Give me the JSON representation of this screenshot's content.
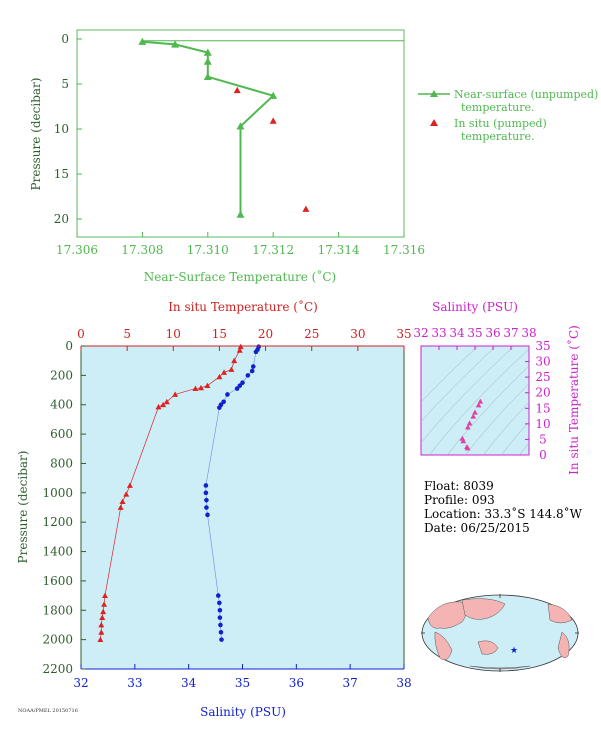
{
  "chart_data": [
    {
      "type": "line",
      "xlabel": "Near-Surface Temperature (˚C)",
      "ylabel": "Pressure (decibar)",
      "xlim": [
        17.306,
        17.316
      ],
      "ylim": [
        22,
        -1
      ],
      "x_ticks": [
        "17.306",
        "17.308",
        "17.310",
        "17.312",
        "17.314",
        "17.316"
      ],
      "y_ticks": [
        "0",
        "5",
        "10",
        "15",
        "20"
      ],
      "series": [
        {
          "name": "Near-surface (unpumped) temperature.",
          "color": "#4fb84f",
          "points": [
            [
              17.308,
              0.3
            ],
            [
              17.309,
              0.6
            ],
            [
              17.31,
              1.5
            ],
            [
              17.31,
              2.5
            ],
            [
              17.31,
              4.2
            ],
            [
              17.312,
              6.3
            ],
            [
              17.311,
              9.7
            ],
            [
              17.311,
              19.5
            ]
          ],
          "extra_line": [
            [
              17.308,
              0.2
            ],
            [
              17.316,
              0.2
            ]
          ]
        },
        {
          "name": "In situ (pumped) temperature.",
          "color": "#dd2222",
          "points": [
            [
              17.3109,
              5.7
            ],
            [
              17.312,
              9.1
            ],
            [
              17.313,
              18.9
            ]
          ]
        }
      ],
      "legend_position": "right"
    },
    {
      "type": "line",
      "title": "In situ Temperature (˚C)",
      "xlabel": "Salinity (PSU)",
      "ylabel": "Pressure (decibar)",
      "temp_lim": [
        0,
        35
      ],
      "sal_lim": [
        32,
        38
      ],
      "ylim": [
        2200,
        0
      ],
      "temp_ticks": [
        "0",
        "5",
        "10",
        "15",
        "20",
        "25",
        "30",
        "35"
      ],
      "sal_ticks": [
        "32",
        "33",
        "34",
        "35",
        "36",
        "37",
        "38"
      ],
      "y_ticks": [
        "0",
        "200",
        "400",
        "600",
        "800",
        "1000",
        "1200",
        "1400",
        "1600",
        "1800",
        "2000",
        "2200"
      ],
      "series": [
        {
          "name": "In situ temperature",
          "color": "#dd2222",
          "points": [
            [
              17.3,
              5
            ],
            [
              17.2,
              30
            ],
            [
              16.6,
              100
            ],
            [
              16.3,
              160
            ],
            [
              15.5,
              180
            ],
            [
              15.0,
              210
            ],
            [
              13.7,
              270
            ],
            [
              13.0,
              285
            ],
            [
              12.4,
              290
            ],
            [
              10.2,
              330
            ],
            [
              9.3,
              380
            ],
            [
              8.9,
              400
            ],
            [
              8.4,
              415
            ],
            [
              5.3,
              950
            ],
            [
              4.9,
              1010
            ],
            [
              4.5,
              1060
            ],
            [
              4.3,
              1100
            ],
            [
              2.6,
              1700
            ],
            [
              2.5,
              1760
            ],
            [
              2.4,
              1810
            ],
            [
              2.3,
              1850
            ],
            [
              2.2,
              1900
            ],
            [
              2.2,
              1950
            ],
            [
              2.1,
              2000
            ]
          ]
        },
        {
          "name": "Salinity",
          "color": "#1122cc",
          "axis": "salinity",
          "points": [
            [
              35.3,
              5
            ],
            [
              35.28,
              25
            ],
            [
              35.25,
              40
            ],
            [
              35.2,
              140
            ],
            [
              35.18,
              170
            ],
            [
              35.1,
              200
            ],
            [
              35.0,
              250
            ],
            [
              34.95,
              270
            ],
            [
              34.9,
              290
            ],
            [
              34.72,
              330
            ],
            [
              34.65,
              380
            ],
            [
              34.6,
              400
            ],
            [
              34.57,
              420
            ],
            [
              34.32,
              950
            ],
            [
              34.32,
              1000
            ],
            [
              34.33,
              1050
            ],
            [
              34.33,
              1100
            ],
            [
              34.35,
              1150
            ],
            [
              34.55,
              1700
            ],
            [
              34.57,
              1750
            ],
            [
              34.58,
              1800
            ],
            [
              34.58,
              1850
            ],
            [
              34.59,
              1900
            ],
            [
              34.6,
              1950
            ],
            [
              34.61,
              2000
            ]
          ]
        }
      ]
    },
    {
      "type": "scatter",
      "title": "Salinity (PSU)",
      "ylabel": "In situ Temperature (˚C)",
      "xlim": [
        32,
        38
      ],
      "ylim": [
        0,
        35
      ],
      "x_ticks": [
        "32",
        "33",
        "34",
        "35",
        "36",
        "37",
        "38"
      ],
      "y_ticks": [
        "0",
        "5",
        "10",
        "15",
        "20",
        "25",
        "30",
        "35"
      ],
      "series": [
        {
          "name": "T-S",
          "color": "#e040a0",
          "points": [
            [
              35.3,
              17.2
            ],
            [
              35.2,
              16.0
            ],
            [
              35.0,
              13.7
            ],
            [
              34.9,
              12.4
            ],
            [
              34.7,
              10.2
            ],
            [
              34.6,
              8.9
            ],
            [
              34.3,
              5.3
            ],
            [
              34.35,
              4.5
            ],
            [
              34.55,
              2.6
            ],
            [
              34.6,
              2.2
            ]
          ]
        }
      ]
    }
  ],
  "info": {
    "float": "Float:  8039",
    "profile": "Profile:  093",
    "location": "Location:  33.3˚S  144.8˚W",
    "date": "Date:  06/25/2015"
  },
  "footer": "NOAA/PMEL 20150716",
  "colors": {
    "green": "#4fb84f",
    "red": "#dd2222",
    "blue": "#1122cc",
    "magenta": "#cc22cc",
    "panel": "#cdeef7",
    "land": "#f4b4b4",
    "ocean": "#cdeef7"
  }
}
